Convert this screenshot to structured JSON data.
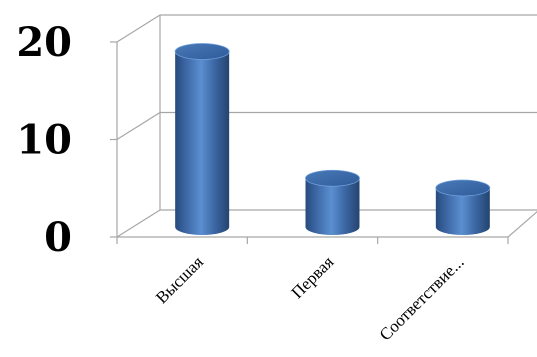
{
  "chart_data": {
    "type": "bar",
    "style": "3d-cylinder",
    "categories": [
      "Высшая",
      "Первая",
      "Соответствие..."
    ],
    "values": [
      18,
      5,
      4
    ],
    "ylim": [
      0,
      20
    ],
    "yticks": [
      0,
      10,
      20
    ],
    "grid": true,
    "legend": "none",
    "colors": {
      "bar": "#4f81bd",
      "bar_dark": "#2c5286",
      "grid": "#a6a6a6"
    }
  }
}
